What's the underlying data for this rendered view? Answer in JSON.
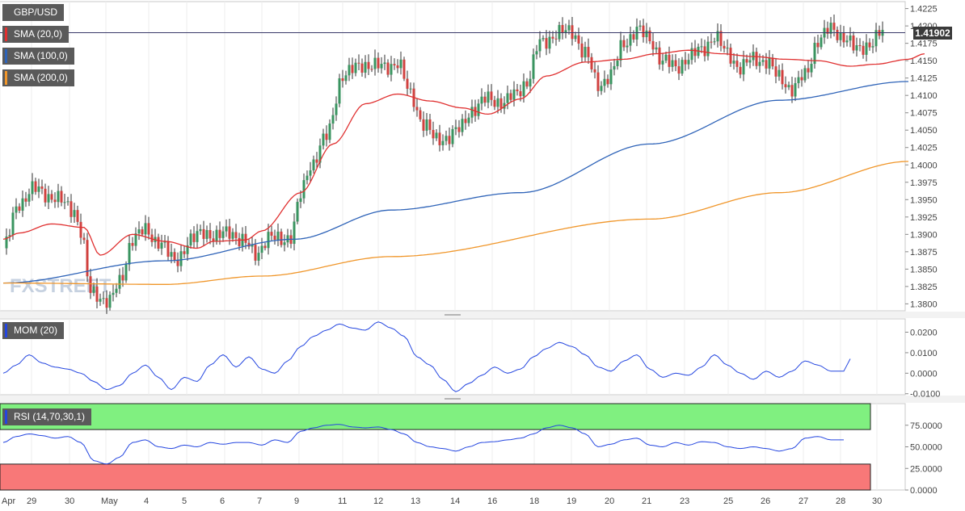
{
  "instrument": "GBP/USD",
  "watermark": "FXSTREET",
  "last_price": "1.41902",
  "colors": {
    "bull": "#3a9460",
    "bear": "#d0413f",
    "sma20": "#e03030",
    "sma100": "#2e63b8",
    "sma200": "#f0962a",
    "mom": "#2446e0",
    "rsi": "#2446e0",
    "rsi_over": "#80f080",
    "rsi_under": "#f87878"
  },
  "legends": {
    "sma20": "SMA (20,0)",
    "sma100": "SMA (100,0)",
    "sma200": "SMA (200,0)",
    "mom": "MOM (20)",
    "rsi": "RSI (14,70,30,1)"
  },
  "chart_data": [
    {
      "type": "candlestick",
      "title": "GBP/USD",
      "ylim": [
        1.379,
        1.4235
      ],
      "y_ticks": [
        "1.4225",
        "1.4200",
        "1.4175",
        "1.4150",
        "1.4125",
        "1.4100",
        "1.4075",
        "1.4050",
        "1.4025",
        "1.4000",
        "1.3975",
        "1.3950",
        "1.3925",
        "1.3900",
        "1.3875",
        "1.3850",
        "1.3825",
        "1.3800"
      ],
      "x_labels": [
        "Apr",
        "29",
        "30",
        "May",
        "4",
        "5",
        "6",
        "7",
        "9",
        "11",
        "12",
        "13",
        "14",
        "16",
        "18",
        "19",
        "20",
        "21",
        "23",
        "25",
        "26",
        "27",
        "28",
        "30"
      ],
      "series": [
        {
          "name": "SMA (20,0)",
          "anchors": [
            [
              0,
              1.3893
            ],
            [
              5,
              1.3902
            ],
            [
              15,
              1.3915
            ],
            [
              25,
              1.391
            ],
            [
              30,
              1.387
            ],
            [
              40,
              1.39
            ],
            [
              50,
              1.389
            ],
            [
              60,
              1.388
            ],
            [
              65,
              1.389
            ],
            [
              75,
              1.3892
            ],
            [
              80,
              1.3905
            ],
            [
              92,
              1.396
            ],
            [
              102,
              1.403
            ],
            [
              112,
              1.4088
            ],
            [
              122,
              1.4102
            ],
            [
              132,
              1.4092
            ],
            [
              142,
              1.4082
            ],
            [
              150,
              1.4073
            ],
            [
              160,
              1.4095
            ],
            [
              168,
              1.4128
            ],
            [
              180,
              1.4148
            ],
            [
              192,
              1.4152
            ],
            [
              202,
              1.416
            ],
            [
              212,
              1.4165
            ],
            [
              222,
              1.416
            ],
            [
              232,
              1.4156
            ],
            [
              242,
              1.4152
            ],
            [
              252,
              1.415
            ],
            [
              262,
              1.4142
            ],
            [
              270,
              1.4145
            ],
            [
              280,
              1.4152
            ],
            [
              285,
              1.416
            ]
          ]
        },
        {
          "name": "SMA (100,0)",
          "anchors": [
            [
              0,
              1.383
            ],
            [
              50,
              1.3862
            ],
            [
              90,
              1.3893
            ],
            [
              120,
              1.3935
            ],
            [
              160,
              1.396
            ],
            [
              200,
              1.403
            ],
            [
              240,
              1.4093
            ],
            [
              280,
              1.412
            ]
          ]
        },
        {
          "name": "SMA (200,0)",
          "anchors": [
            [
              0,
              1.383
            ],
            [
              50,
              1.3828
            ],
            [
              80,
              1.384
            ],
            [
              120,
              1.3868
            ],
            [
              200,
              1.3922
            ],
            [
              240,
              1.396
            ],
            [
              280,
              1.4005
            ]
          ]
        }
      ],
      "ohlc_anchors": [
        [
          0,
          1.388
        ],
        [
          5,
          1.3945
        ],
        [
          9,
          1.3965
        ],
        [
          15,
          1.3955
        ],
        [
          22,
          1.3935
        ],
        [
          24,
          1.3905
        ],
        [
          27,
          1.3815
        ],
        [
          33,
          1.3805
        ],
        [
          36,
          1.383
        ],
        [
          40,
          1.3895
        ],
        [
          44,
          1.3905
        ],
        [
          48,
          1.389
        ],
        [
          53,
          1.3862
        ],
        [
          58,
          1.389
        ],
        [
          62,
          1.3905
        ],
        [
          66,
          1.3895
        ],
        [
          70,
          1.3905
        ],
        [
          74,
          1.389
        ],
        [
          78,
          1.3872
        ],
        [
          82,
          1.3895
        ],
        [
          86,
          1.3892
        ],
        [
          89,
          1.3898
        ],
        [
          92,
          1.3955
        ],
        [
          95,
          1.4
        ],
        [
          100,
          1.404
        ],
        [
          105,
          1.413
        ],
        [
          112,
          1.4145
        ],
        [
          118,
          1.414
        ],
        [
          122,
          1.4148
        ],
        [
          126,
          1.41
        ],
        [
          130,
          1.406
        ],
        [
          134,
          1.4035
        ],
        [
          137,
          1.404
        ],
        [
          141,
          1.405
        ],
        [
          145,
          1.408
        ],
        [
          150,
          1.4095
        ],
        [
          155,
          1.409
        ],
        [
          158,
          1.41
        ],
        [
          162,
          1.412
        ],
        [
          166,
          1.4175
        ],
        [
          172,
          1.419
        ],
        [
          176,
          1.4192
        ],
        [
          180,
          1.416
        ],
        [
          184,
          1.4115
        ],
        [
          188,
          1.413
        ],
        [
          192,
          1.4175
        ],
        [
          196,
          1.4195
        ],
        [
          200,
          1.418
        ],
        [
          204,
          1.415
        ],
        [
          208,
          1.414
        ],
        [
          212,
          1.4155
        ],
        [
          216,
          1.4165
        ],
        [
          220,
          1.4185
        ],
        [
          224,
          1.416
        ],
        [
          228,
          1.414
        ],
        [
          232,
          1.4152
        ],
        [
          236,
          1.415
        ],
        [
          240,
          1.4125
        ],
        [
          244,
          1.411
        ],
        [
          248,
          1.4128
        ],
        [
          252,
          1.418
        ],
        [
          256,
          1.4195
        ],
        [
          260,
          1.4185
        ],
        [
          264,
          1.4165
        ],
        [
          268,
          1.4175
        ],
        [
          272,
          1.419
        ]
      ]
    },
    {
      "type": "line",
      "title": "MOM (20)",
      "ylim": [
        -0.0105,
        0.0265
      ],
      "y_ticks": [
        "0.0200",
        "0.0100",
        "0.0000",
        "-0.0100"
      ],
      "series": [
        {
          "name": "MOM (20)",
          "anchors": [
            [
              0,
              0.0
            ],
            [
              4,
              0.004
            ],
            [
              8,
              0.009
            ],
            [
              12,
              0.005
            ],
            [
              16,
              0.003
            ],
            [
              20,
              0.002
            ],
            [
              24,
              0.0
            ],
            [
              28,
              -0.004
            ],
            [
              32,
              -0.008
            ],
            [
              36,
              -0.006
            ],
            [
              40,
              0.0
            ],
            [
              44,
              0.004
            ],
            [
              48,
              -0.002
            ],
            [
              52,
              -0.008
            ],
            [
              56,
              -0.002
            ],
            [
              60,
              -0.004
            ],
            [
              64,
              0.004
            ],
            [
              68,
              0.009
            ],
            [
              72,
              0.003
            ],
            [
              76,
              0.008
            ],
            [
              80,
              0.002
            ],
            [
              84,
              0.0
            ],
            [
              88,
              0.006
            ],
            [
              92,
              0.013
            ],
            [
              96,
              0.018
            ],
            [
              100,
              0.021
            ],
            [
              104,
              0.024
            ],
            [
              108,
              0.022
            ],
            [
              112,
              0.021
            ],
            [
              116,
              0.025
            ],
            [
              120,
              0.022
            ],
            [
              124,
              0.018
            ],
            [
              128,
              0.008
            ],
            [
              132,
              0.004
            ],
            [
              136,
              -0.003
            ],
            [
              140,
              -0.009
            ],
            [
              144,
              -0.005
            ],
            [
              148,
              -0.001
            ],
            [
              152,
              0.003
            ],
            [
              156,
              0.0
            ],
            [
              160,
              0.002
            ],
            [
              164,
              0.008
            ],
            [
              168,
              0.012
            ],
            [
              172,
              0.015
            ],
            [
              176,
              0.013
            ],
            [
              180,
              0.009
            ],
            [
              184,
              0.003
            ],
            [
              188,
              0.001
            ],
            [
              192,
              0.006
            ],
            [
              196,
              0.009
            ],
            [
              200,
              0.002
            ],
            [
              204,
              -0.002
            ],
            [
              208,
              0.0
            ],
            [
              212,
              -0.001
            ],
            [
              216,
              0.003
            ],
            [
              220,
              0.009
            ],
            [
              224,
              0.004
            ],
            [
              228,
              0.0
            ],
            [
              232,
              -0.003
            ],
            [
              236,
              0.001
            ],
            [
              240,
              -0.002
            ],
            [
              244,
              0.001
            ],
            [
              248,
              0.006
            ],
            [
              252,
              0.004
            ],
            [
              256,
              0.001
            ],
            [
              260,
              0.001
            ],
            [
              262,
              0.007
            ]
          ]
        }
      ]
    },
    {
      "type": "line",
      "title": "RSI (14,70,30,1)",
      "ylim": [
        0,
        100
      ],
      "y_ticks": [
        "75.0000",
        "50.0000",
        "25.0000",
        "0.0000"
      ],
      "zones": [
        [
          70,
          100
        ],
        [
          0,
          30
        ]
      ],
      "series": [
        {
          "name": "RSI (14,70,30,1)",
          "anchors": [
            [
              0,
              55
            ],
            [
              4,
              62
            ],
            [
              8,
              65
            ],
            [
              12,
              63
            ],
            [
              16,
              60
            ],
            [
              20,
              62
            ],
            [
              24,
              55
            ],
            [
              28,
              34
            ],
            [
              32,
              30
            ],
            [
              36,
              38
            ],
            [
              40,
              55
            ],
            [
              44,
              58
            ],
            [
              48,
              50
            ],
            [
              52,
              48
            ],
            [
              56,
              52
            ],
            [
              60,
              50
            ],
            [
              64,
              55
            ],
            [
              68,
              53
            ],
            [
              72,
              55
            ],
            [
              76,
              55
            ],
            [
              80,
              52
            ],
            [
              84,
              58
            ],
            [
              88,
              55
            ],
            [
              92,
              68
            ],
            [
              96,
              72
            ],
            [
              100,
              75
            ],
            [
              104,
              76
            ],
            [
              108,
              73
            ],
            [
              112,
              72
            ],
            [
              116,
              73
            ],
            [
              120,
              70
            ],
            [
              124,
              65
            ],
            [
              128,
              55
            ],
            [
              132,
              50
            ],
            [
              136,
              48
            ],
            [
              140,
              45
            ],
            [
              144,
              50
            ],
            [
              148,
              55
            ],
            [
              152,
              56
            ],
            [
              156,
              58
            ],
            [
              160,
              60
            ],
            [
              164,
              65
            ],
            [
              168,
              72
            ],
            [
              172,
              75
            ],
            [
              176,
              72
            ],
            [
              180,
              65
            ],
            [
              184,
              50
            ],
            [
              188,
              53
            ],
            [
              192,
              58
            ],
            [
              196,
              60
            ],
            [
              200,
              52
            ],
            [
              204,
              50
            ],
            [
              208,
              55
            ],
            [
              212,
              52
            ],
            [
              216,
              56
            ],
            [
              220,
              55
            ],
            [
              224,
              50
            ],
            [
              228,
              48
            ],
            [
              232,
              50
            ],
            [
              236,
              48
            ],
            [
              240,
              45
            ],
            [
              244,
              48
            ],
            [
              248,
              60
            ],
            [
              252,
              62
            ],
            [
              256,
              58
            ],
            [
              260,
              58
            ]
          ]
        }
      ]
    }
  ]
}
